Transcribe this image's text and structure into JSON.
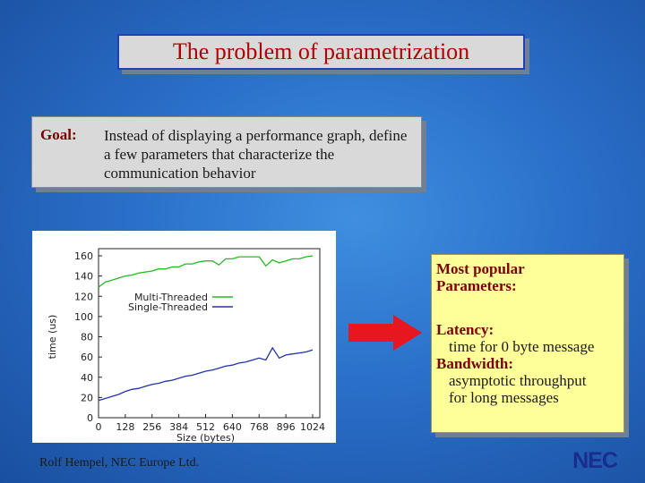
{
  "slide": {
    "title": "The problem of parametrization",
    "goal_label": "Goal:",
    "goal_text": "Instead of displaying a performance graph, define a few parameters that characterize the communication behavior",
    "params": {
      "heading_line1": "Most popular",
      "heading_line2": "Parameters:",
      "latency_label": "Latency:",
      "latency_desc": "time for 0 byte message",
      "bandwidth_label": "Bandwidth:",
      "bandwidth_desc_line1": "asymptotic throughput",
      "bandwidth_desc_line2": "for long messages"
    },
    "footer": "Rolf Hempel, NEC Europe Ltd.",
    "logo_text": "NEC",
    "colors": {
      "title_text": "#b00000",
      "label_text": "#7a0000",
      "arrow": "#e8161e",
      "multi_threaded": "#22bb22",
      "single_threaded": "#2233aa",
      "logo": "#1a2d8c"
    }
  },
  "chart_data": {
    "type": "line",
    "xlabel": "Size (bytes)",
    "ylabel": "time (us)",
    "xlim": [
      0,
      1024
    ],
    "ylim": [
      0,
      160
    ],
    "xticks": [
      0,
      128,
      256,
      384,
      512,
      640,
      768,
      896,
      1024
    ],
    "yticks": [
      0,
      20,
      40,
      60,
      80,
      100,
      120,
      140,
      160
    ],
    "legend_position": "center-right",
    "series": [
      {
        "name": "Multi-Threaded",
        "color": "#22bb22",
        "x": [
          0,
          32,
          64,
          96,
          128,
          160,
          192,
          224,
          256,
          288,
          320,
          352,
          384,
          416,
          448,
          480,
          512,
          544,
          576,
          608,
          640,
          672,
          704,
          736,
          768,
          800,
          832,
          864,
          896,
          928,
          960,
          992,
          1024
        ],
        "y": [
          129,
          134,
          136,
          138,
          140,
          141,
          143,
          144,
          145,
          147,
          147,
          149,
          149,
          152,
          152,
          154,
          155,
          155,
          151,
          157,
          157,
          159,
          159,
          159,
          159,
          150,
          156,
          153,
          155,
          157,
          157,
          159,
          160
        ]
      },
      {
        "name": "Single-Threaded",
        "color": "#2233aa",
        "x": [
          0,
          32,
          64,
          96,
          128,
          160,
          192,
          224,
          256,
          288,
          320,
          352,
          384,
          416,
          448,
          480,
          512,
          544,
          576,
          608,
          640,
          672,
          704,
          736,
          768,
          800,
          832,
          864,
          896,
          928,
          960,
          992,
          1024
        ],
        "y": [
          17,
          19,
          21,
          23,
          26,
          28,
          29,
          31,
          33,
          34,
          36,
          37,
          39,
          41,
          42,
          44,
          46,
          47,
          49,
          51,
          52,
          54,
          55,
          57,
          59,
          57,
          69,
          59,
          62,
          63,
          64,
          65,
          67
        ]
      }
    ]
  }
}
